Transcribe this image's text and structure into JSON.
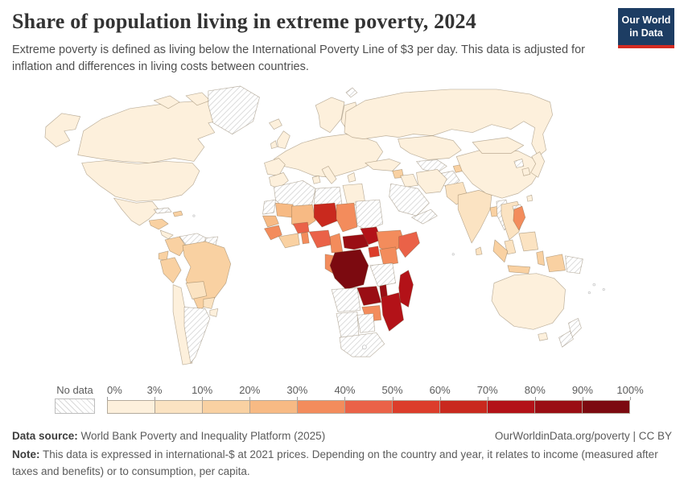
{
  "header": {
    "title": "Share of population living in extreme poverty, 2024",
    "subtitle": "Extreme poverty is defined as living below the International Poverty Line of $3 per day. This data is adjusted for inflation and differences in living costs between countries.",
    "logo_line1": "Our World",
    "logo_line2": "in Data",
    "logo_bg": "#1d3d63",
    "logo_stripe": "#d42b21"
  },
  "legend": {
    "no_data_label": "No data",
    "ticks": [
      "0%",
      "3%",
      "10%",
      "20%",
      "30%",
      "40%",
      "50%",
      "60%",
      "70%",
      "80%",
      "90%",
      "100%"
    ],
    "bins": [
      {
        "range": "0-3",
        "color": "#FDF0DC"
      },
      {
        "range": "3-10",
        "color": "#FBE3C2"
      },
      {
        "range": "10-20",
        "color": "#F9D1A2"
      },
      {
        "range": "20-30",
        "color": "#F7BA84"
      },
      {
        "range": "30-40",
        "color": "#F38C5C"
      },
      {
        "range": "40-50",
        "color": "#EA6248"
      },
      {
        "range": "50-60",
        "color": "#DC3D2B"
      },
      {
        "range": "60-70",
        "color": "#C9291E"
      },
      {
        "range": "70-80",
        "color": "#B31218"
      },
      {
        "range": "80-90",
        "color": "#9A0E14"
      },
      {
        "range": "90-100",
        "color": "#7C0A10"
      }
    ]
  },
  "chart_data": {
    "type": "choropleth-map",
    "title": "Share of population living in extreme poverty, 2024",
    "unit": "% of population living below the $3/day International Poverty Line",
    "legend_bins": [
      "No data",
      "0-3%",
      "3-10%",
      "10-20%",
      "20-30%",
      "30-40%",
      "40-50%",
      "50-60%",
      "60-70%",
      "70-80%",
      "80-90%",
      "90-100%"
    ],
    "regions": {
      "usa-alaska": "0-3",
      "canada": "0-3",
      "canada-arctic-1": "0-3",
      "canada-arctic-2": "0-3",
      "canada-arctic-3": "0-3",
      "greenland": "no-data",
      "svalbard": "no-data",
      "iceland": "0-3",
      "usa": "0-3",
      "mexico": "0-3",
      "guatemala-honduras": "10-20",
      "costa-rica-panama": "0-3",
      "cuba": "no-data",
      "hispaniola": "10-20",
      "venezuela": "no-data",
      "guyanas": "no-data",
      "colombia": "10-20",
      "ecuador": "10-20",
      "peru": "10-20",
      "brazil": "10-20",
      "bolivia": "3-10",
      "paraguay": "3-10",
      "uruguay": "0-3",
      "chile": "0-3",
      "argentina": "no-data",
      "united-kingdom": "0-3",
      "ireland": "0-3",
      "scandinavia": "0-3",
      "finland-baltics": "0-3",
      "europe-mainland": "0-3",
      "iberia": "0-3",
      "italy": "0-3",
      "greece": "0-3",
      "russia": "0-3",
      "kazakhstan": "0-3",
      "turkmenistan-uzbekistan": "no-data",
      "afghanistan": "no-data",
      "tajikistan": "10-20",
      "turkey": "0-3",
      "syria": "10-20",
      "iraq": "0-3",
      "saudi-arabia": "no-data",
      "yemen-oman": "no-data",
      "iran": "0-3",
      "morocco": "0-3",
      "algeria": "no-data",
      "tunisia": "0-3",
      "libya": "no-data",
      "egypt": "0-3",
      "western-sahara": "no-data",
      "mauritania": "20-30",
      "mali": "20-30",
      "niger": "60-70",
      "chad": "30-40",
      "sudan": "no-data",
      "senegal": "20-30",
      "guinea": "30-40",
      "cote-divoire-ghana": "10-20",
      "burkina-faso": "40-50",
      "benin-togo": "30-40",
      "nigeria": "40-50",
      "cameroon": "30-40",
      "central-african-republic": "80-90",
      "south-sudan": "70-80",
      "ethiopia": "30-40",
      "somalia": "40-50",
      "uganda": "50-60",
      "kenya": "30-40",
      "congo-gabon": "30-40",
      "democratic-republic-of-congo": "90-100",
      "tanzania": "no-data",
      "angola": "no-data",
      "zambia": "80-90",
      "malawi": "80-90",
      "mozambique": "70-80",
      "zimbabwe": "30-40",
      "namibia": "no-data",
      "botswana": "no-data",
      "south-africa": "no-data",
      "madagascar": "70-80",
      "pakistan": "3-10",
      "india": "3-10",
      "bangladesh": "10-20",
      "sri-lanka": "3-10",
      "myanmar": "no-data",
      "china": "0-3",
      "mongolia": "0-3",
      "north-korea": "no-data",
      "south-korea": "0-3",
      "japan": "0-3",
      "taiwan": "0-3",
      "indochina": "3-10",
      "laos": "no-data",
      "malay-peninsula": "3-10",
      "borneo": "3-10",
      "sumatra": "10-20",
      "java": "10-20",
      "sulawesi": "10-20",
      "philippines": "30-40",
      "west-papua": "10-20",
      "papua-new-guinea": "no-data",
      "australia": "0-3",
      "tasmania": "0-3",
      "new-zealand": "no-data"
    }
  },
  "footer": {
    "datasource_label": "Data source:",
    "datasource_text": " World Bank Poverty and Inequality Platform (2025)",
    "link_text": "OurWorldinData.org/poverty",
    "license_text": " | CC BY",
    "note_label": "Note:",
    "note_text": " This data is expressed in international-$ at 2021 prices. Depending on the country and year, it relates to income (measured after taxes and benefits) or to consumption, per capita."
  }
}
